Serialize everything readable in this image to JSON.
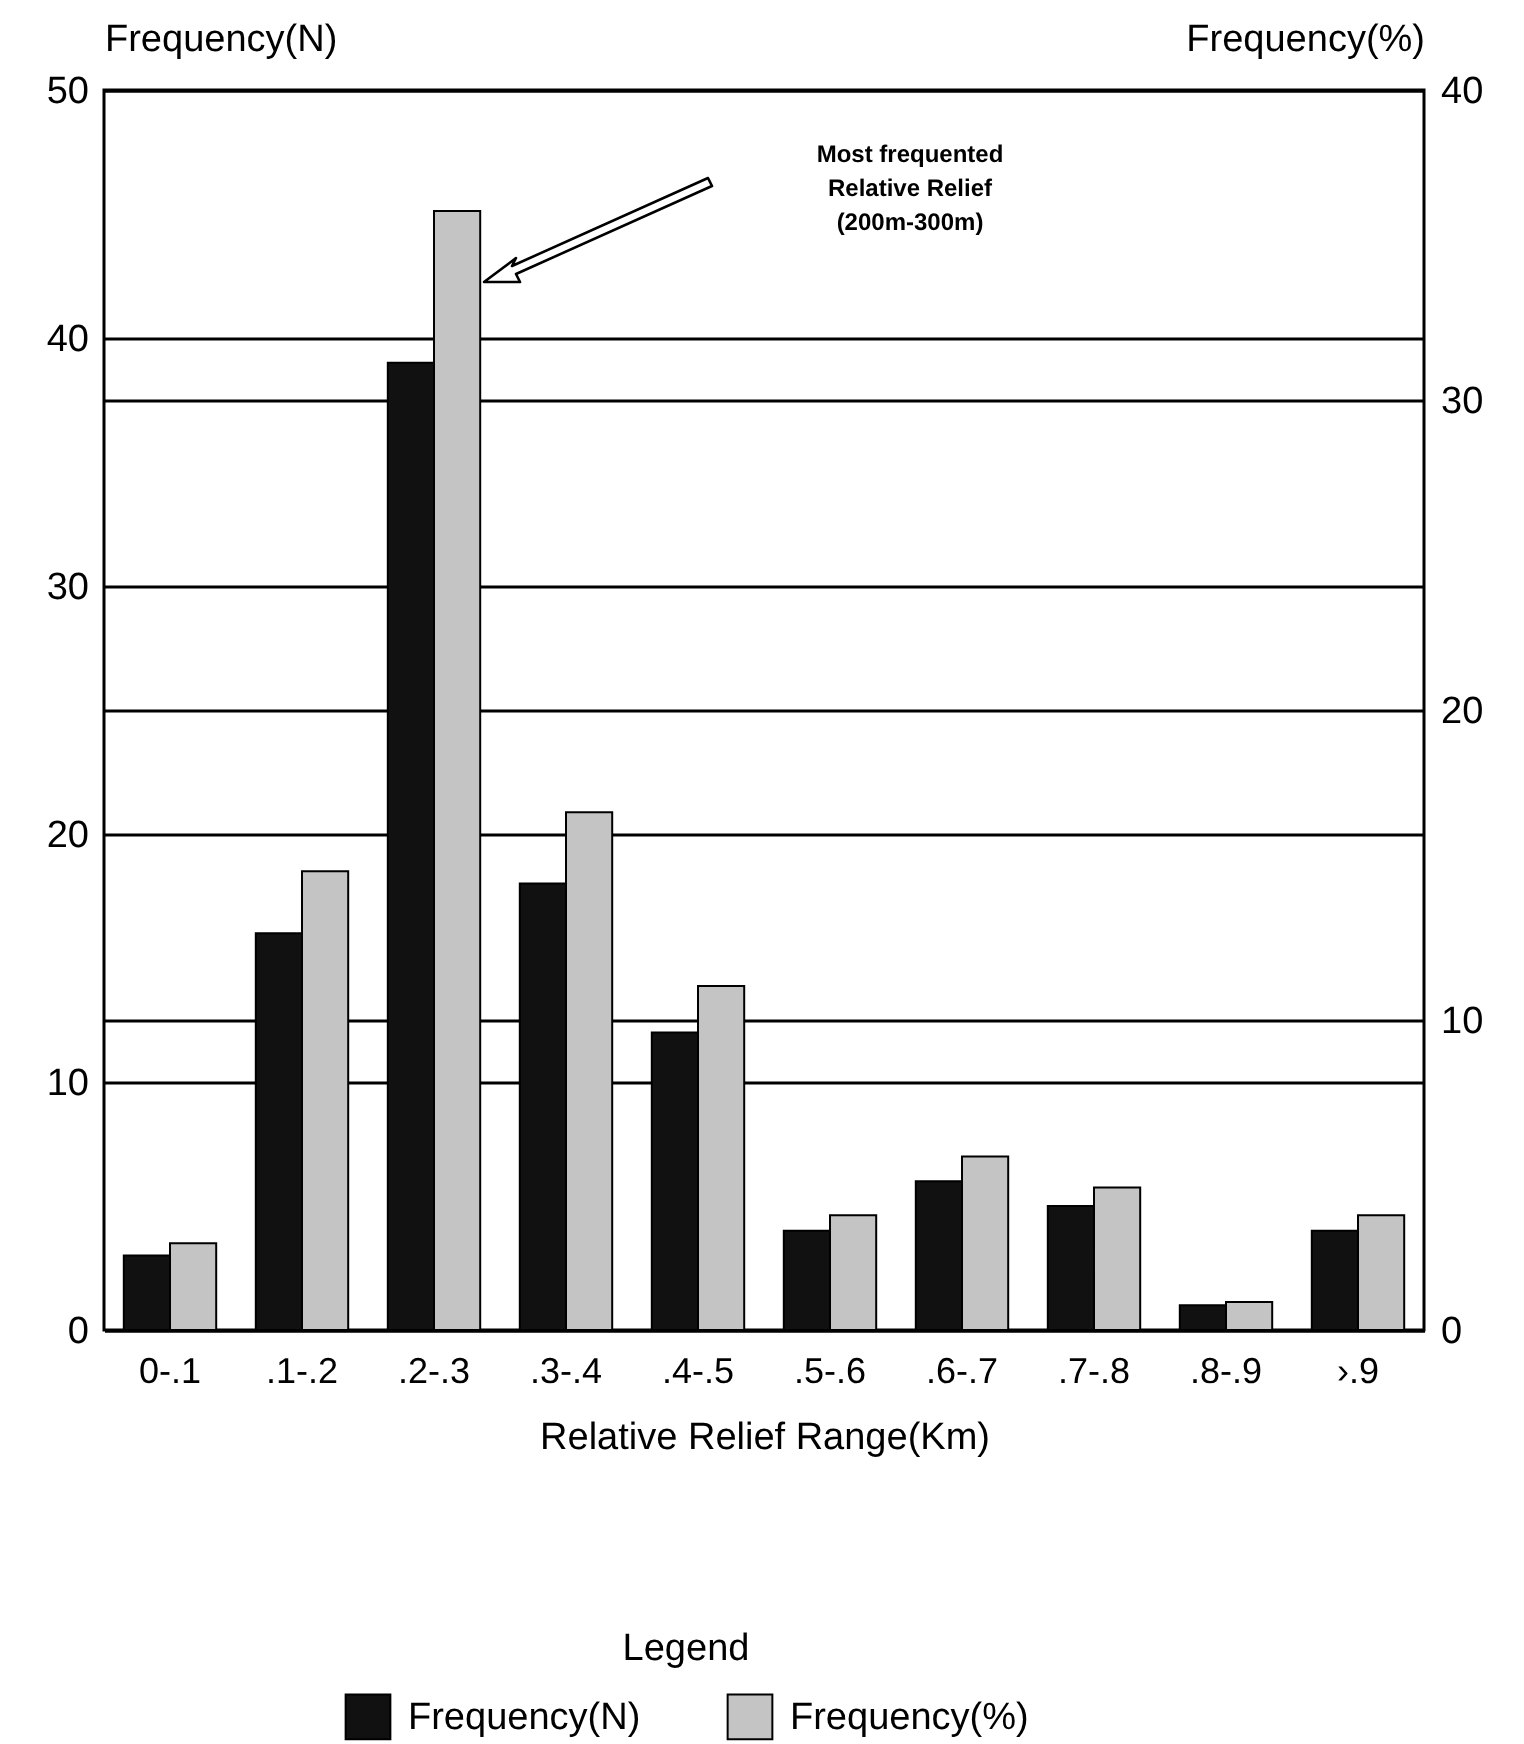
{
  "chart_data": {
    "type": "bar",
    "xlabel": "Relative Relief Range(Km)",
    "ylabel": "Frequency(N)",
    "y2label": "Frequency(%)",
    "legend_title": "Legend",
    "categories": [
      "0-.1",
      ".1-.2",
      ".2-.3",
      ".3-.4",
      ".4-.5",
      ".5-.6",
      ".6-.7",
      ".7-.8",
      ".8-.9",
      "›.9"
    ],
    "series": [
      {
        "name": "Frequency(N)",
        "color": "#111111",
        "values": [
          3,
          16,
          39,
          18,
          12,
          4,
          6,
          5,
          1,
          4
        ]
      },
      {
        "name": "Frequency(%)",
        "color": "#c4c4c4",
        "axis": "y2",
        "values": [
          2.8,
          14.8,
          36.1,
          16.7,
          11.1,
          3.7,
          5.6,
          4.6,
          0.9,
          3.7
        ]
      }
    ],
    "ylim": [
      0,
      50
    ],
    "yticks": [
      0,
      10,
      20,
      30,
      40,
      50
    ],
    "y2lim": [
      0,
      40
    ],
    "y2ticks": [
      0,
      10,
      20,
      30,
      40
    ],
    "grid": true,
    "legend": "bottom",
    "annotations": [
      "Most frequented\nRelative Relief\n(200m-300m)"
    ]
  }
}
